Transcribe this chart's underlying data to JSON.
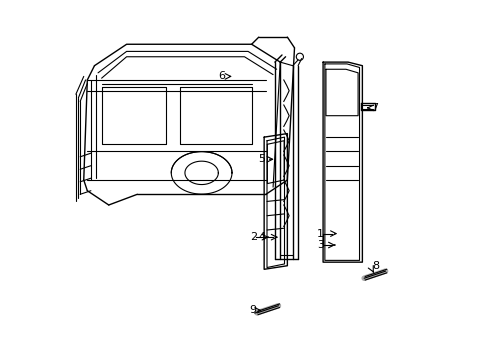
{
  "bg_color": "#ffffff",
  "line_color": "#000000",
  "fig_width": 4.89,
  "fig_height": 3.6,
  "dpi": 100,
  "lw_thin": 0.8,
  "lw_med": 1.0,
  "lw_thick": 1.4,
  "label_fs": 8
}
